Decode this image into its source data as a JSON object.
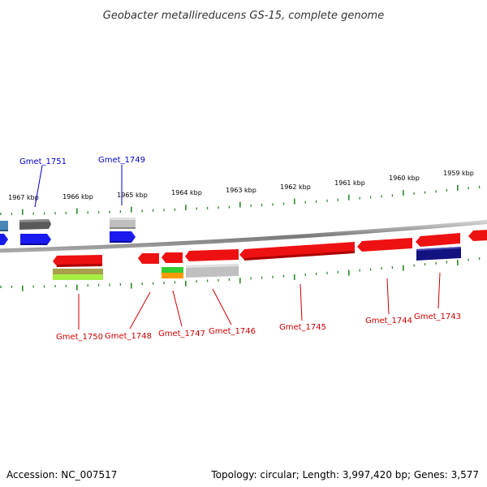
{
  "title": "Geobacter metallireducens GS-15, complete genome",
  "footer": {
    "accession": "Accession: NC_007517",
    "topology": "Topology: circular; Length: 3,997,420 bp; Genes: 3,577"
  },
  "colors": {
    "backbone": "#8c8c8c",
    "tick": "#2a8a2a",
    "forward_label": "#0000cc",
    "reverse_label": "#cc0000",
    "red": "#ee1111",
    "blue": "#1a1aee",
    "navy": "#121280",
    "gray": "#c0c0c0",
    "dark_gray": "#5a5a5a",
    "steel_blue": "#4a86b8",
    "olive": "#a8a04a",
    "lime": "#a6ee44",
    "green": "#33cc33",
    "orange": "#ff9900"
  },
  "scale_labels": [
    "1967 kbp",
    "1966 kbp",
    "1965 kbp",
    "1964 kbp",
    "1963 kbp",
    "1962 kbp",
    "1961 kbp",
    "1960 kbp",
    "1959 kbp"
  ],
  "gene_labels": {
    "forward": [
      "Gmet_1751",
      "Gmet_1749"
    ],
    "reverse": [
      "Gmet_1750",
      "Gmet_1748",
      "Gmet_1747",
      "Gmet_1746",
      "Gmet_1745",
      "Gmet_1744",
      "Gmet_1743"
    ]
  }
}
